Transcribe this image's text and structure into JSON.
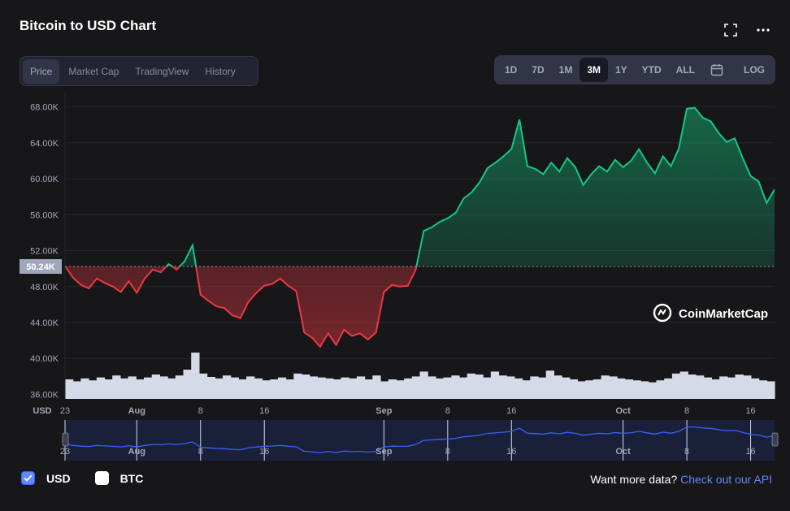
{
  "header": {
    "title": "Bitcoin to USD Chart",
    "fullscreen_icon": "fullscreen-icon",
    "more_icon": "more-icon"
  },
  "tabs": [
    "Price",
    "Market Cap",
    "TradingView",
    "History"
  ],
  "active_tab": "Price",
  "ranges": [
    "1D",
    "7D",
    "1M",
    "3M",
    "1Y",
    "YTD",
    "ALL"
  ],
  "active_range": "3M",
  "calendar_icon": "calendar-icon",
  "log_label": "LOG",
  "chart_data": {
    "type": "area",
    "currency_label": "USD",
    "y_ticks": [
      "68.00K",
      "64.00K",
      "60.00K",
      "56.00K",
      "52.00K",
      "48.00K",
      "44.00K",
      "40.00K",
      "36.00K"
    ],
    "ylim": [
      35500,
      69500
    ],
    "reference_label": "50.24K",
    "reference_value": 50240,
    "x_ticks": [
      "23",
      "Aug",
      "8",
      "16",
      "Sep",
      "8",
      "16",
      "Oct",
      "8",
      "16"
    ],
    "x_tick_days": [
      0,
      9,
      17,
      25,
      40,
      48,
      56,
      70,
      78,
      86
    ],
    "up_color": "#16c784",
    "down_color": "#ea3943",
    "x_days": [
      0,
      1,
      2,
      3,
      4,
      5,
      6,
      7,
      8,
      9,
      10,
      11,
      12,
      13,
      14,
      15,
      16,
      17,
      18,
      19,
      20,
      21,
      22,
      23,
      24,
      25,
      26,
      27,
      28,
      29,
      30,
      31,
      32,
      33,
      34,
      35,
      36,
      37,
      38,
      39,
      40,
      41,
      42,
      43,
      44,
      45,
      46,
      47,
      48,
      49,
      50,
      51,
      52,
      53,
      54,
      55,
      56,
      57,
      58,
      59,
      60,
      61,
      62,
      63,
      64,
      65,
      66,
      67,
      68,
      69,
      70,
      71,
      72,
      73,
      74,
      75,
      76,
      77,
      78,
      79,
      80,
      81,
      82,
      83,
      84,
      85,
      86,
      87,
      88,
      89
    ],
    "prices": [
      50300,
      49000,
      48200,
      47800,
      48900,
      48400,
      48000,
      47400,
      48600,
      47300,
      48900,
      49900,
      49600,
      50500,
      49900,
      50800,
      52600,
      47100,
      46400,
      45800,
      45600,
      44800,
      44500,
      46300,
      47300,
      48100,
      48300,
      48900,
      48100,
      47500,
      42900,
      42300,
      41300,
      42800,
      41500,
      43200,
      42500,
      42800,
      42100,
      42900,
      47400,
      48200,
      48000,
      48100,
      49900,
      54200,
      54600,
      55200,
      55600,
      56200,
      57800,
      58500,
      59600,
      61200,
      61800,
      62500,
      63300,
      66600,
      61400,
      61100,
      60500,
      61800,
      60800,
      62300,
      61300,
      59300,
      60500,
      61400,
      60800,
      62100,
      61300,
      62000,
      63300,
      61800,
      60600,
      62500,
      61400,
      63400,
      67800,
      67900,
      66800,
      66400,
      65100,
      64100,
      64500,
      62300,
      60300,
      59700,
      57300,
      58800
    ],
    "volumes": [
      0.4,
      0.36,
      0.42,
      0.38,
      0.44,
      0.4,
      0.48,
      0.42,
      0.46,
      0.4,
      0.44,
      0.5,
      0.46,
      0.42,
      0.48,
      0.6,
      0.95,
      0.52,
      0.45,
      0.42,
      0.48,
      0.44,
      0.4,
      0.46,
      0.42,
      0.38,
      0.4,
      0.44,
      0.4,
      0.52,
      0.5,
      0.46,
      0.44,
      0.42,
      0.4,
      0.44,
      0.42,
      0.46,
      0.4,
      0.48,
      0.36,
      0.4,
      0.38,
      0.42,
      0.46,
      0.56,
      0.46,
      0.42,
      0.44,
      0.48,
      0.44,
      0.52,
      0.5,
      0.44,
      0.56,
      0.48,
      0.46,
      0.42,
      0.38,
      0.46,
      0.44,
      0.58,
      0.48,
      0.44,
      0.4,
      0.36,
      0.38,
      0.4,
      0.48,
      0.46,
      0.42,
      0.4,
      0.38,
      0.36,
      0.34,
      0.38,
      0.42,
      0.52,
      0.56,
      0.5,
      0.48,
      0.44,
      0.4,
      0.46,
      0.44,
      0.5,
      0.48,
      0.42,
      0.38,
      0.36
    ]
  },
  "watermark": "CoinMarketCap",
  "footer": {
    "usd_label": "USD",
    "btc_label": "BTC",
    "api_text": "Want more data?",
    "api_link": "Check out our API"
  }
}
